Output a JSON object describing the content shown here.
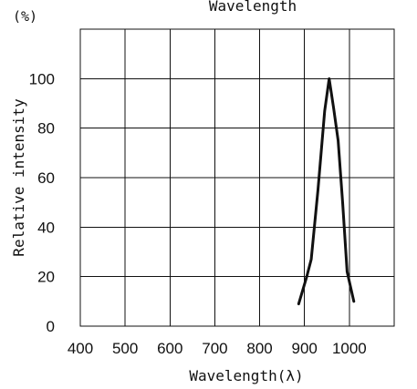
{
  "chart_data": {
    "type": "line",
    "title": "Wavelength",
    "xlabel": "Wavelength(λ)",
    "ylabel": "Relative intensity",
    "y_unit": "(%)",
    "xlim": [
      400,
      1100
    ],
    "ylim": [
      0,
      120
    ],
    "x_ticks": [
      400,
      500,
      600,
      700,
      800,
      900,
      1000
    ],
    "y_ticks": [
      0,
      20,
      40,
      60,
      80,
      100
    ],
    "x_tick_labels": [
      "400",
      "500",
      "600",
      "700",
      "800",
      "900",
      "1000"
    ],
    "y_tick_labels": [
      "0",
      "20",
      "40",
      "60",
      "80",
      "100"
    ],
    "grid": true,
    "series": [
      {
        "points": [
          {
            "x": 887,
            "y": 9
          },
          {
            "x": 905,
            "y": 20
          },
          {
            "x": 915,
            "y": 27
          },
          {
            "x": 930,
            "y": 55
          },
          {
            "x": 945,
            "y": 87
          },
          {
            "x": 955,
            "y": 100
          },
          {
            "x": 965,
            "y": 88
          },
          {
            "x": 975,
            "y": 75
          },
          {
            "x": 985,
            "y": 50
          },
          {
            "x": 995,
            "y": 22
          },
          {
            "x": 1010,
            "y": 10
          }
        ]
      }
    ]
  },
  "colors": {
    "background": "#ffffff",
    "line": "#111111",
    "grid": "#111111"
  }
}
